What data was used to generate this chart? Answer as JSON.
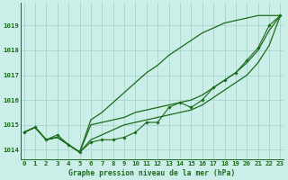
{
  "title": "Graphe pression niveau de la mer (hPa)",
  "bg_color": "#cceee8",
  "grid_color": "#aad8d0",
  "line_color": "#1a6b1a",
  "x_ticks": [
    0,
    1,
    2,
    3,
    4,
    5,
    6,
    7,
    8,
    9,
    10,
    11,
    12,
    13,
    14,
    15,
    16,
    17,
    18,
    19,
    20,
    21,
    22,
    23
  ],
  "y_ticks": [
    1014,
    1015,
    1016,
    1017,
    1018,
    1019
  ],
  "ylim": [
    1013.6,
    1019.9
  ],
  "xlim": [
    -0.3,
    23.3
  ],
  "series_main": [
    1014.7,
    1014.9,
    1014.4,
    1014.6,
    1014.2,
    1013.9,
    1014.3,
    1014.4,
    1014.4,
    1014.5,
    1014.7,
    1015.1,
    1015.1,
    1015.7,
    1015.9,
    1015.7,
    1016.0,
    1016.5,
    1016.8,
    1017.1,
    1017.6,
    1018.1,
    1019.0,
    1019.4
  ],
  "series_smooth1": [
    1014.7,
    1014.9,
    1014.4,
    1014.5,
    1014.2,
    1013.9,
    1014.4,
    1014.6,
    1014.8,
    1015.0,
    1015.1,
    1015.2,
    1015.3,
    1015.4,
    1015.5,
    1015.6,
    1015.8,
    1016.1,
    1016.4,
    1016.7,
    1017.0,
    1017.5,
    1018.2,
    1019.4
  ],
  "series_smooth2": [
    1014.7,
    1014.9,
    1014.4,
    1014.5,
    1014.2,
    1013.9,
    1015.0,
    1015.1,
    1015.2,
    1015.3,
    1015.5,
    1015.6,
    1015.7,
    1015.8,
    1015.9,
    1016.0,
    1016.2,
    1016.5,
    1016.8,
    1017.1,
    1017.5,
    1018.0,
    1018.8,
    1019.4
  ],
  "series_top": [
    1014.7,
    1014.9,
    1014.4,
    1014.5,
    1014.2,
    1013.9,
    1015.2,
    1015.5,
    1015.9,
    1016.3,
    1016.7,
    1017.1,
    1017.4,
    1017.8,
    1018.1,
    1018.4,
    1018.7,
    1018.9,
    1019.1,
    1019.2,
    1019.3,
    1019.4,
    1019.4,
    1019.4
  ],
  "title_fontsize": 5.8,
  "tick_fontsize": 5.3
}
